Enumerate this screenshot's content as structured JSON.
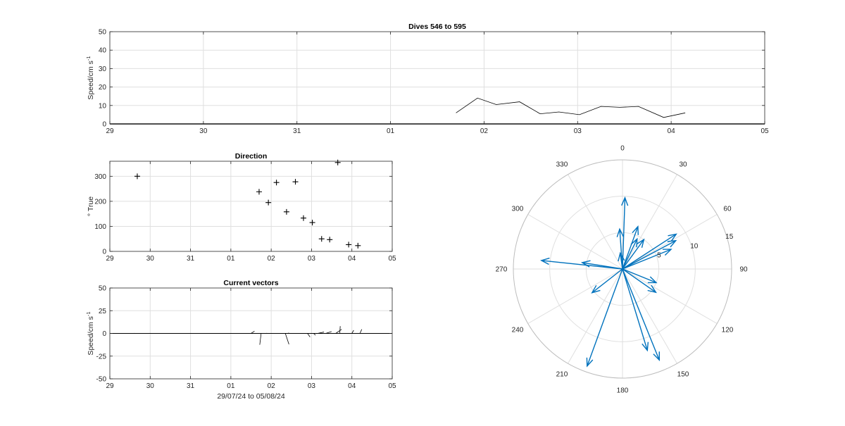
{
  "chart_data": [
    {
      "type": "line",
      "title": "Dives 546 to 595",
      "ylabel": "Speed/cm s",
      "ylabel_sup": "-1",
      "xlim": [
        0,
        7
      ],
      "ylim": [
        0,
        50
      ],
      "yticks": [
        0,
        10,
        20,
        30,
        40,
        50
      ],
      "xtick_labels": [
        "29",
        "30",
        "31",
        "01",
        "02",
        "03",
        "04",
        "05"
      ],
      "grid": true,
      "series": [
        {
          "x": [
            3.7,
            3.93,
            4.13,
            4.38,
            4.6,
            4.8,
            5.02,
            5.25,
            5.45,
            5.65,
            5.92,
            6.15
          ],
          "y": [
            6,
            14,
            10.5,
            12,
            5.5,
            6.5,
            5,
            9.5,
            9,
            9.5,
            3.5,
            6
          ]
        }
      ]
    },
    {
      "type": "scatter",
      "title": "Direction",
      "ylabel": "° True",
      "xlim": [
        0,
        7
      ],
      "ylim": [
        0,
        360
      ],
      "yticks": [
        0,
        100,
        200,
        300
      ],
      "xtick_labels": [
        "29",
        "30",
        "31",
        "01",
        "02",
        "03",
        "04",
        "05"
      ],
      "marker": "+",
      "grid": true,
      "series": [
        {
          "x": [
            0.68,
            3.7,
            3.93,
            4.13,
            4.38,
            4.6,
            4.8,
            5.02,
            5.25,
            5.45,
            5.65,
            5.92,
            6.15
          ],
          "y": [
            300,
            238,
            195,
            275,
            158,
            278,
            133,
            115,
            50,
            47,
            355,
            27,
            23
          ]
        }
      ]
    },
    {
      "type": "vector",
      "title": "Current vectors",
      "ylabel": "Speed/cm s",
      "ylabel_sup": "-1",
      "xlabel": "29/07/24 to 05/08/24",
      "xlim": [
        0,
        7
      ],
      "ylim": [
        -50,
        50
      ],
      "yticks": [
        -50,
        -25,
        0,
        25,
        50
      ],
      "xtick_labels": [
        "29",
        "30",
        "31",
        "01",
        "02",
        "03",
        "04",
        "05"
      ],
      "grid": true,
      "vectors": [
        {
          "x": 0.6,
          "u": 0.1,
          "v": 0.4
        },
        {
          "x": 3.5,
          "u": 3.8,
          "v": 2.5
        },
        {
          "x": 3.75,
          "u": -1.5,
          "v": -12.5
        },
        {
          "x": 3.85,
          "u": 2.0,
          "v": 0.2
        },
        {
          "x": 4.35,
          "u": 4.0,
          "v": -12.0
        },
        {
          "x": 4.45,
          "u": -1.2,
          "v": 0.5
        },
        {
          "x": 4.9,
          "u": 2.8,
          "v": -4.0
        },
        {
          "x": 5.05,
          "u": 2.2,
          "v": -2.0
        },
        {
          "x": 5.15,
          "u": 7.0,
          "v": 1.5
        },
        {
          "x": 5.35,
          "u": 6.5,
          "v": 2.0
        },
        {
          "x": 5.6,
          "u": 6.5,
          "v": 4.5
        },
        {
          "x": 5.7,
          "u": 0.5,
          "v": 8.0
        },
        {
          "x": 6.0,
          "u": 2.0,
          "v": 3.5
        },
        {
          "x": 6.2,
          "u": 2.0,
          "v": 4.5
        }
      ]
    },
    {
      "type": "polar",
      "theta_zero": "top",
      "direction": "clockwise",
      "rlim": [
        0,
        15
      ],
      "rticks": [
        5,
        10,
        15
      ],
      "theta_tick_labels": [
        "0",
        "30",
        "60",
        "90",
        "120",
        "150",
        "180",
        "210",
        "240",
        "270",
        "300",
        "330"
      ],
      "color": "#0072BD",
      "vectors": [
        {
          "dir": 2,
          "speed": 9.8
        },
        {
          "dir": 20,
          "speed": 6.2
        },
        {
          "dir": 26,
          "speed": 4.6
        },
        {
          "dir": 36,
          "speed": 5.0
        },
        {
          "dir": 57,
          "speed": 8.8
        },
        {
          "dir": 62,
          "speed": 8.3
        },
        {
          "dir": 68,
          "speed": 7.2
        },
        {
          "dir": 112,
          "speed": 5.0
        },
        {
          "dir": 125,
          "speed": 5.6
        },
        {
          "dir": 158,
          "speed": 13.5
        },
        {
          "dir": 163,
          "speed": 11.7
        },
        {
          "dir": 200,
          "speed": 14.2
        },
        {
          "dir": 232,
          "speed": 5.3
        },
        {
          "dir": 276,
          "speed": 11.2
        },
        {
          "dir": 279,
          "speed": 5.6
        },
        {
          "dir": 352,
          "speed": 2.2
        },
        {
          "dir": 356,
          "speed": 5.5
        }
      ]
    }
  ]
}
